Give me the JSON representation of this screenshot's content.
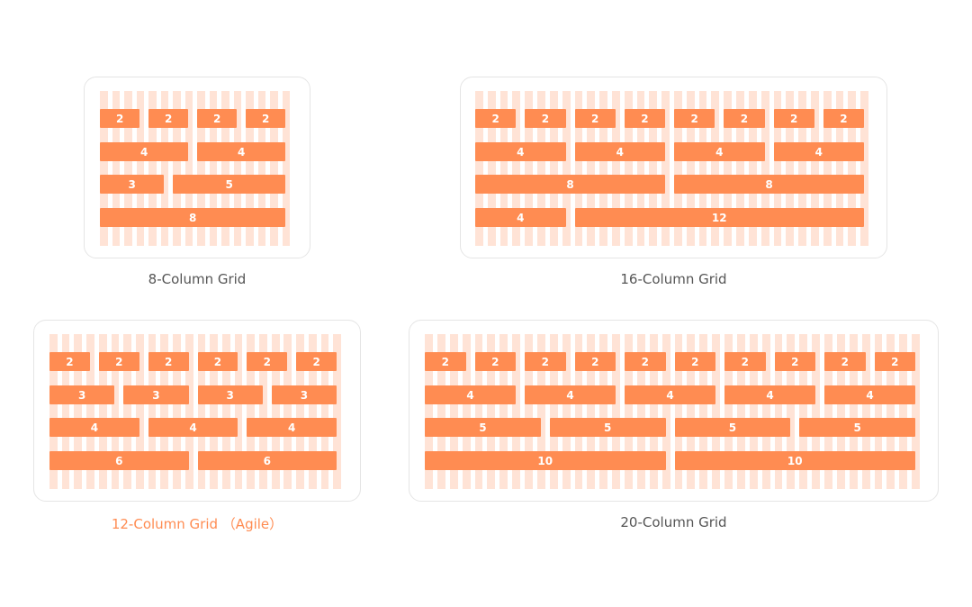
{
  "colors": {
    "accent": "#ff8c52",
    "stripe": "#ffe3d6",
    "border": "#e5e5e5",
    "caption": "#555555"
  },
  "grids": [
    {
      "id": "grid-8",
      "caption": "8-Column Grid",
      "columns": 8,
      "highlighted": false,
      "rows": [
        [
          2,
          2,
          2,
          2
        ],
        [
          4,
          4
        ],
        [
          3,
          5
        ],
        [
          8
        ]
      ]
    },
    {
      "id": "grid-16",
      "caption": "16-Column Grid",
      "columns": 16,
      "highlighted": false,
      "rows": [
        [
          2,
          2,
          2,
          2,
          2,
          2,
          2,
          2
        ],
        [
          4,
          4,
          4,
          4
        ],
        [
          8,
          8
        ],
        [
          4,
          12
        ]
      ]
    },
    {
      "id": "grid-12",
      "caption": "12-Column Grid （Agile）",
      "columns": 12,
      "highlighted": true,
      "rows": [
        [
          2,
          2,
          2,
          2,
          2,
          2
        ],
        [
          3,
          3,
          3,
          3
        ],
        [
          4,
          4,
          4
        ],
        [
          6,
          6
        ]
      ]
    },
    {
      "id": "grid-20",
      "caption": "20-Column Grid",
      "columns": 20,
      "highlighted": false,
      "rows": [
        [
          2,
          2,
          2,
          2,
          2,
          2,
          2,
          2,
          2,
          2
        ],
        [
          4,
          4,
          4,
          4,
          4
        ],
        [
          5,
          5,
          5,
          5
        ],
        [
          10,
          10
        ]
      ]
    }
  ]
}
